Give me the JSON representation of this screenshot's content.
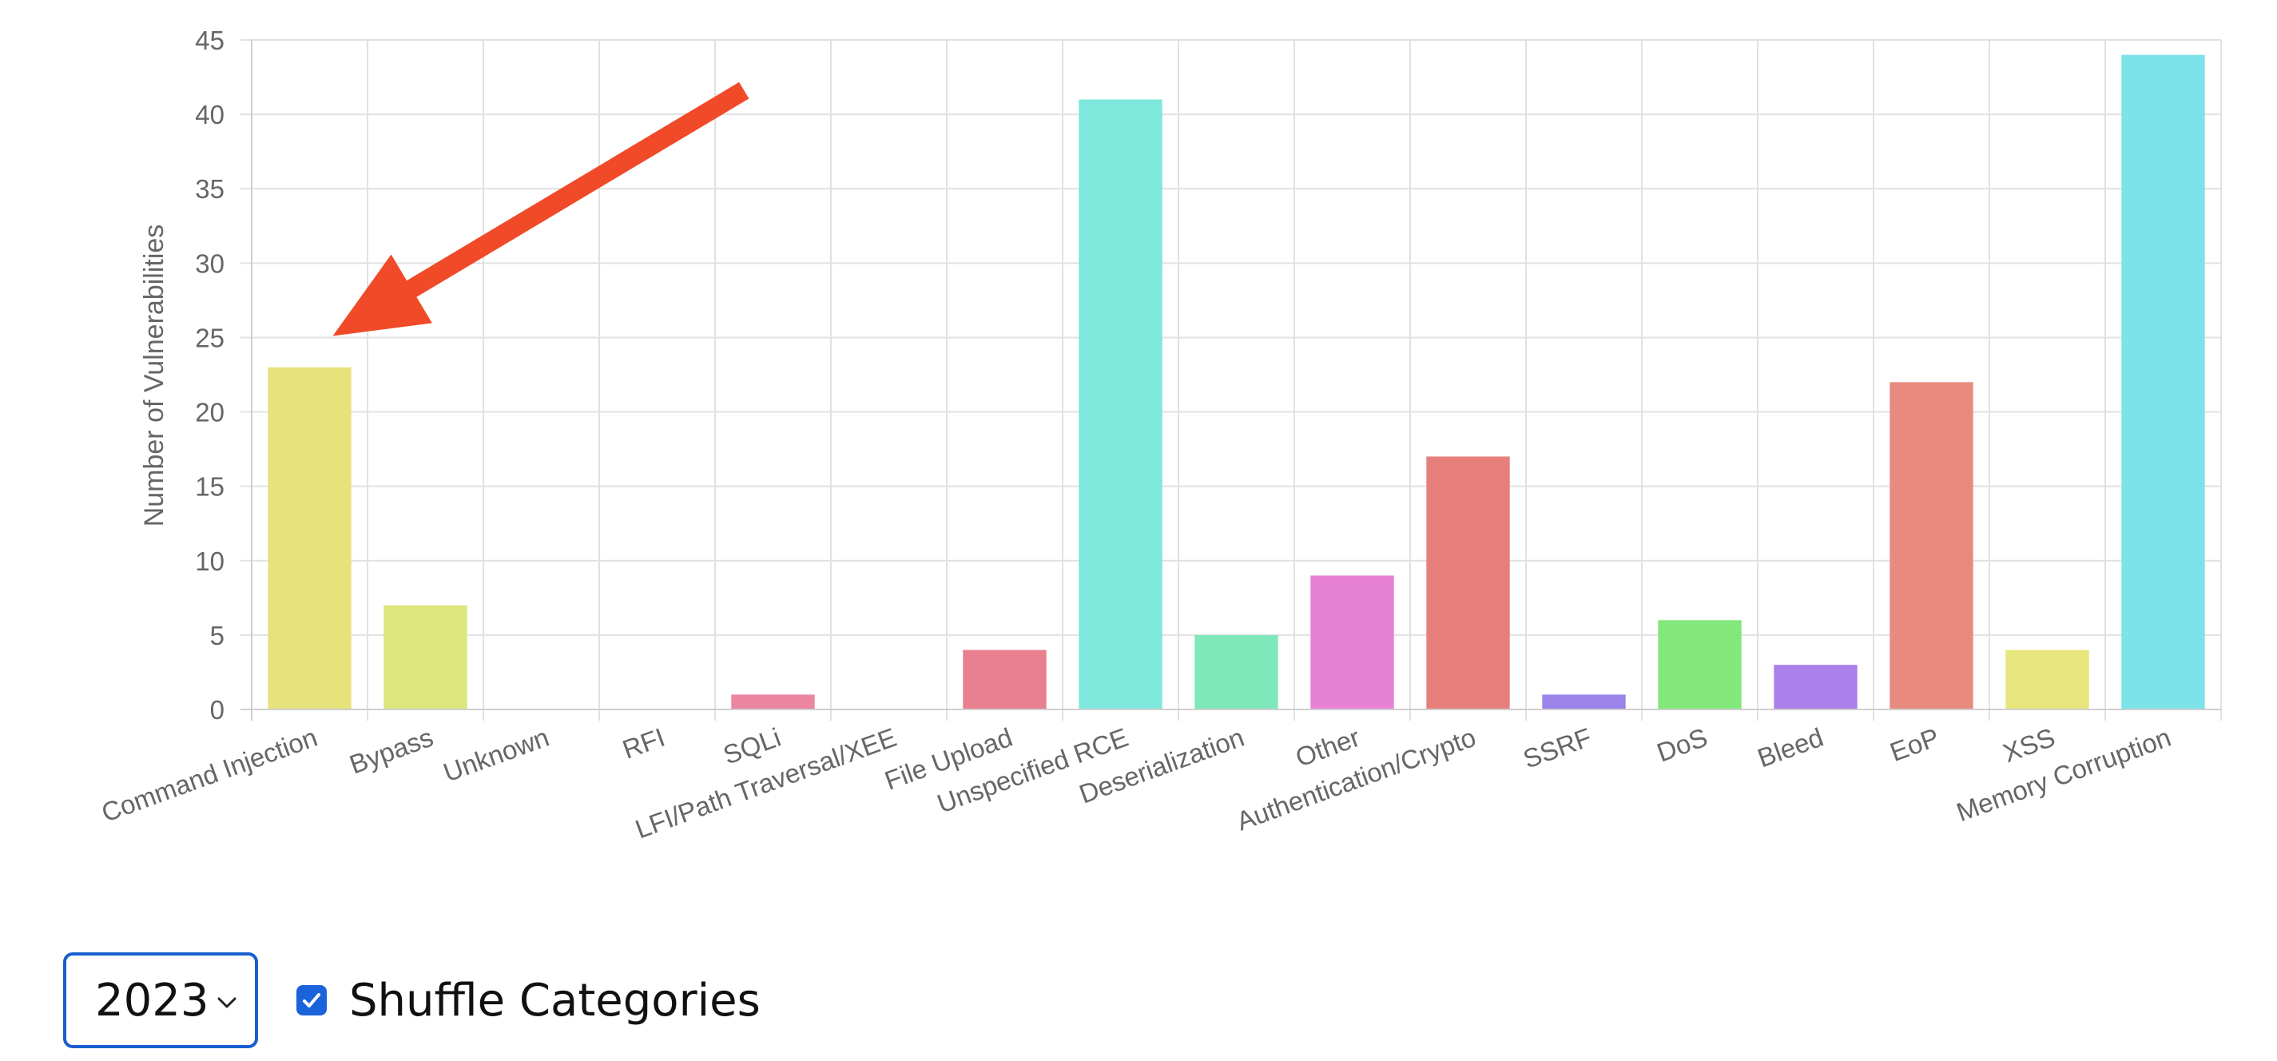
{
  "chart_data": {
    "type": "bar",
    "ylabel": "Number of Vulnerabilities",
    "xlabel": "",
    "ylim": [
      0,
      45
    ],
    "yticks": [
      0,
      5,
      10,
      15,
      20,
      25,
      30,
      35,
      40,
      45
    ],
    "grid": true,
    "legend": "none",
    "categories": [
      "Command Injection",
      "Bypass",
      "Unknown",
      "RFI",
      "SQLi",
      "LFI/Path Traversal/XEE",
      "File Upload",
      "Unspecified RCE",
      "Deserialization",
      "Other",
      "Authentication/Crypto",
      "SSRF",
      "DoS",
      "Bleed",
      "EoP",
      "XSS",
      "Memory Corruption"
    ],
    "values": [
      23,
      7,
      0,
      0,
      1,
      0,
      4,
      41,
      5,
      9,
      17,
      1,
      6,
      3,
      22,
      4,
      44
    ],
    "colors": [
      "#e8e27d",
      "#dbe67c",
      "#cccccc",
      "#cccccc",
      "#ea86a0",
      "#cccccc",
      "#e8808f",
      "#7ee8dc",
      "#7fe8ba",
      "#e781d4",
      "#e67f7c",
      "#9a84ea",
      "#82e87b",
      "#ab80ea",
      "#e88b7e",
      "#e6e67d",
      "#7ce3e8"
    ],
    "annotations": [
      {
        "type": "arrow",
        "color": "#f04a28",
        "target_category": "Command Injection",
        "target_value": 25,
        "from_category": "SQLi",
        "from_value": 40
      }
    ]
  },
  "controls": {
    "year": {
      "selected": "2023",
      "icon": "chevron-down-icon"
    },
    "shuffle": {
      "label": "Shuffle Categories",
      "checked": true,
      "accent": "#1a63db",
      "icon": "checkmark-icon"
    }
  }
}
